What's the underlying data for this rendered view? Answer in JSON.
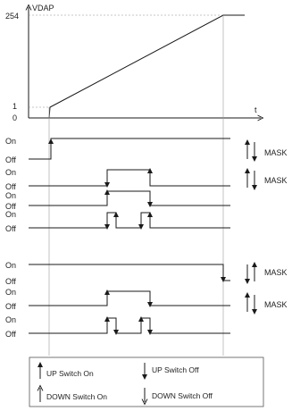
{
  "vdap_chart": {
    "y_label": "VDAP",
    "x_label": "t",
    "y_ticks": [
      "254",
      "1",
      "0"
    ]
  },
  "rows": [
    {
      "on": "On",
      "off": "Off",
      "mask": "MASK",
      "mask_dir": "up-down"
    },
    {
      "on": "On",
      "off": "Off",
      "mask": "MASK",
      "mask_dir": "up-down"
    },
    {
      "on": "On",
      "off": "Off",
      "mask": "",
      "mask_dir": ""
    },
    {
      "on": "On",
      "off": "Off",
      "mask": "",
      "mask_dir": ""
    },
    {
      "on": "On",
      "off": "Off",
      "mask": "MASK",
      "mask_dir": "down-up"
    },
    {
      "on": "On",
      "off": "Off",
      "mask": "MASK",
      "mask_dir": "up-down"
    },
    {
      "on": "On",
      "off": "Off",
      "mask": "",
      "mask_dir": ""
    }
  ],
  "legend": {
    "up_on": "UP Switch On",
    "up_off": "UP Switch Off",
    "down_on": "DOWN Switch On",
    "down_off": "DOWN Switch Off"
  }
}
